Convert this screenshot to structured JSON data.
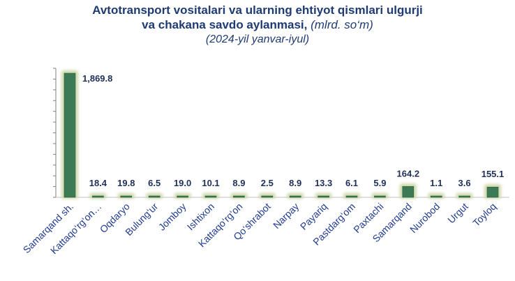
{
  "chart_data": {
    "type": "bar",
    "title_line1": "Avtotransport vositalari va ularning ehtiyot qismlari ulgurji",
    "title_line2": "va chakana savdo aylanmasi,",
    "unit": "(mlrd. so‘m)",
    "subtitle": "(2024-yil yanvar-iyul)",
    "categories": [
      "Samarqand sh.",
      "Kattaqo‘rg‘on…",
      "Oqdaryo",
      "Bulung‘ur",
      "Jomboy",
      "Ishtixon",
      "Kattaqo‘rg‘on",
      "Qo‘shrabot",
      "Narpay",
      "Payariq",
      "Pastdarg‘om",
      "Paxtachi",
      "Samarqand",
      "Nurobod",
      "Urgut",
      "Toyloq"
    ],
    "values": [
      1869.8,
      18.4,
      19.8,
      6.5,
      19.0,
      10.1,
      8.9,
      2.5,
      8.9,
      13.3,
      6.1,
      5.9,
      164.2,
      1.1,
      3.6,
      155.1
    ],
    "value_labels": [
      "1,869.8",
      "18.4",
      "19.8",
      "6.5",
      "19.0",
      "10.1",
      "8.9",
      "2.5",
      "8.9",
      "13.3",
      "6.1",
      "5.9",
      "164.2",
      "1.1",
      "3.6",
      "155.1"
    ],
    "ylim": [
      0,
      1869.8
    ],
    "grid": false,
    "bar_color": "#3c7a55",
    "glow_color": "#c8d4a0"
  }
}
